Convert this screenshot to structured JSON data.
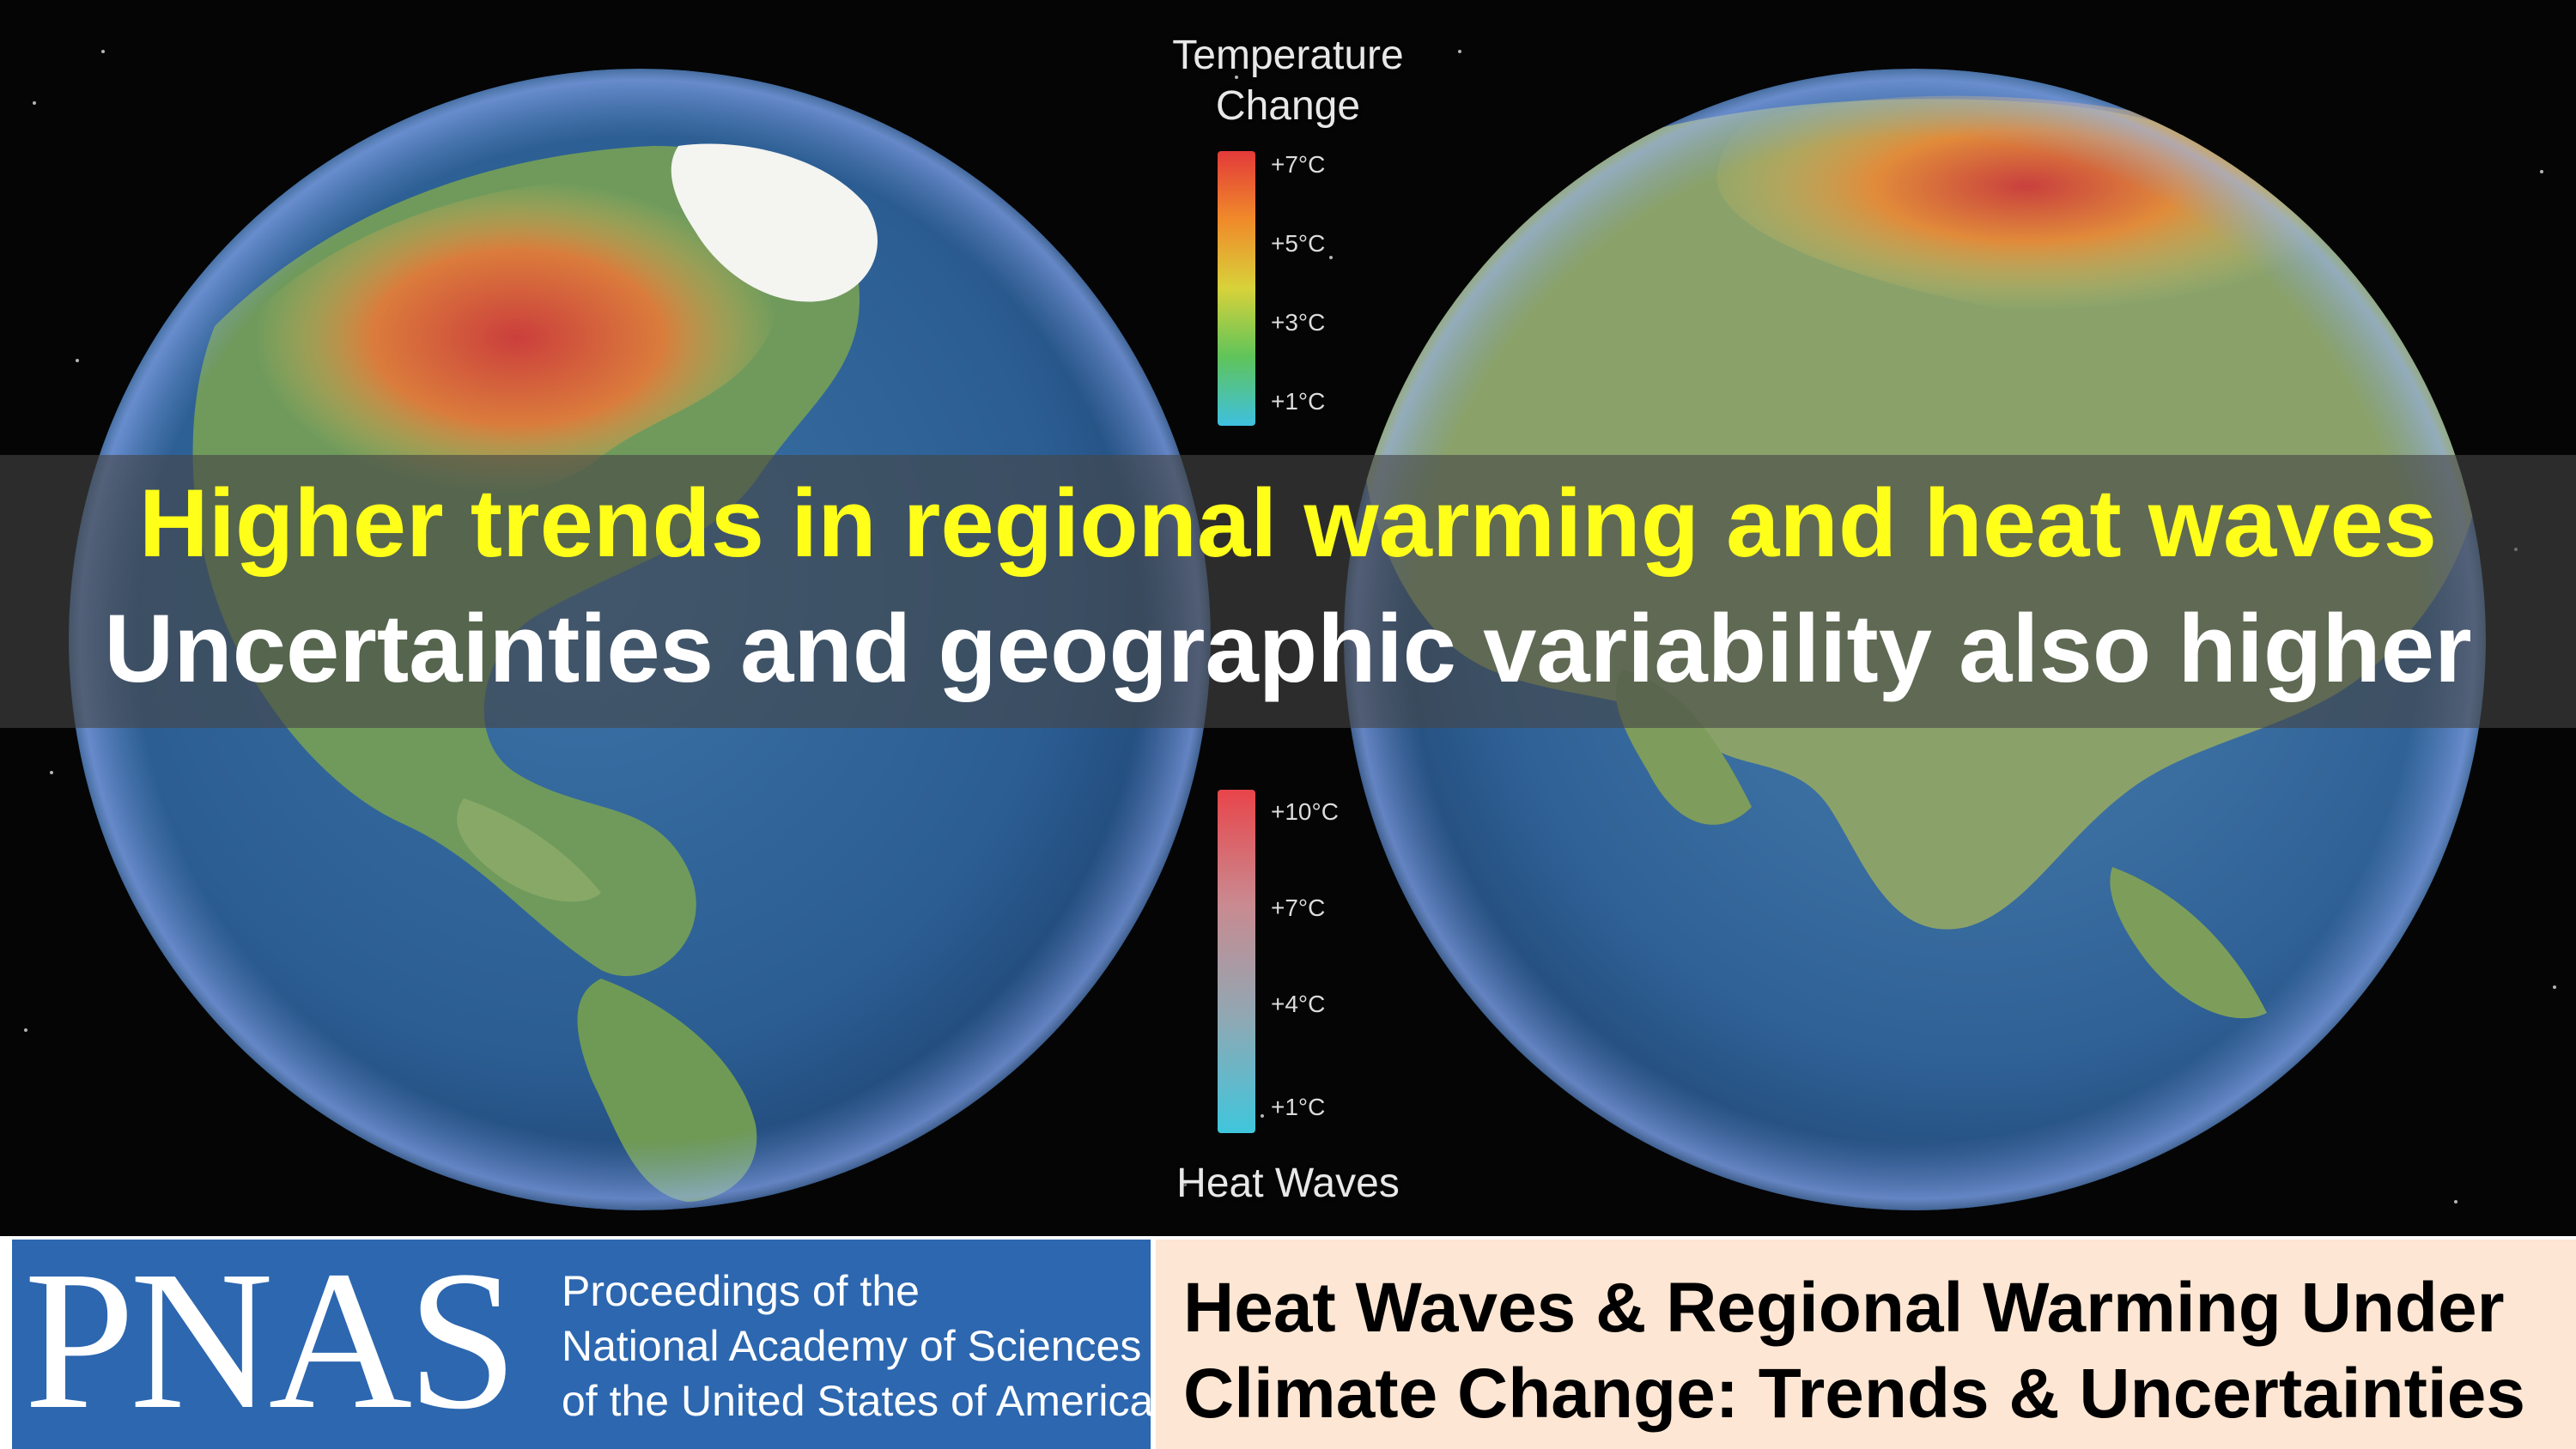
{
  "headline": {
    "line1": "Higher trends in regional warming and heat waves",
    "line2": "Uncertainties and geographic variability also higher",
    "line1_color": "#ffff1a",
    "line2_color": "#ffffff"
  },
  "legend_temperature": {
    "title_line1": "Temperature",
    "title_line2": "Change",
    "ticks": [
      "+7°C",
      "+5°C",
      "+3°C",
      "+1°C"
    ],
    "gradient_colors": [
      "#e33a3a",
      "#f08a2a",
      "#d8d23a",
      "#5fc45a",
      "#3fc0e0"
    ]
  },
  "legend_heatwaves": {
    "title": "Heat Waves",
    "ticks": [
      "+10°C",
      "+7°C",
      "+4°C",
      "+1°C"
    ],
    "gradient_colors": [
      "#e8454a",
      "#c98a90",
      "#8fa8b4",
      "#3fc6dc"
    ]
  },
  "publisher": {
    "logo": "PNAS",
    "subtitle_line1": "Proceedings of the",
    "subtitle_line2": "National Academy of Sciences",
    "subtitle_line3": "of the United States of America",
    "panel_color": "#2c67b0"
  },
  "paper": {
    "title_line1": "Heat Waves & Regional Warming Under",
    "title_line2": "Climate Change: Trends & Uncertainties",
    "panel_color": "#fde6d3"
  }
}
